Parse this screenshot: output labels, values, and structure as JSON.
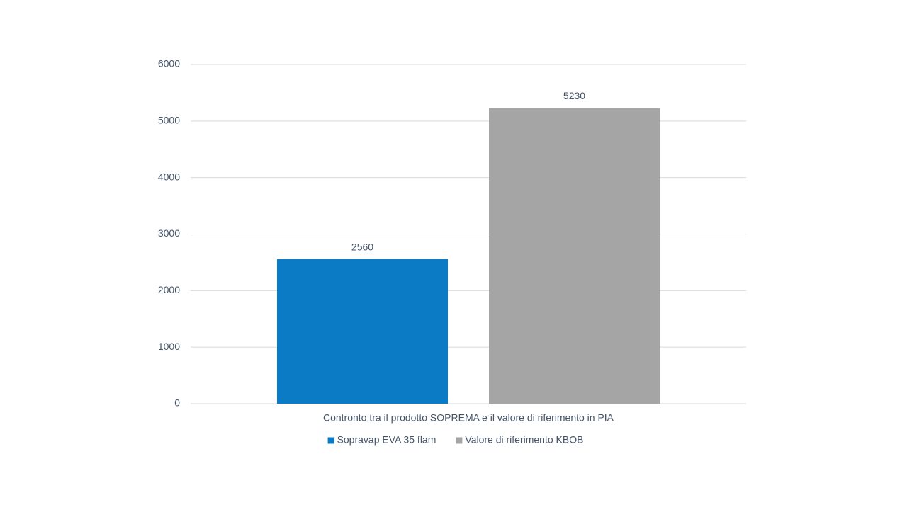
{
  "chart_data": {
    "type": "bar",
    "categories": [
      "Contronto tra il prodotto SOPREMA e il valore di riferimento in PIA"
    ],
    "series": [
      {
        "name": "Sopravap EVA 35 flam",
        "color": "#0a7bc4",
        "values": [
          2560
        ]
      },
      {
        "name": "Valore di riferimento KBOB",
        "color": "#a5a5a5",
        "values": [
          5230
        ]
      }
    ],
    "ylim": [
      0,
      6000
    ],
    "yticks": [
      0,
      1000,
      2000,
      3000,
      4000,
      5000,
      6000
    ],
    "grid": true,
    "legend": "bottom"
  }
}
